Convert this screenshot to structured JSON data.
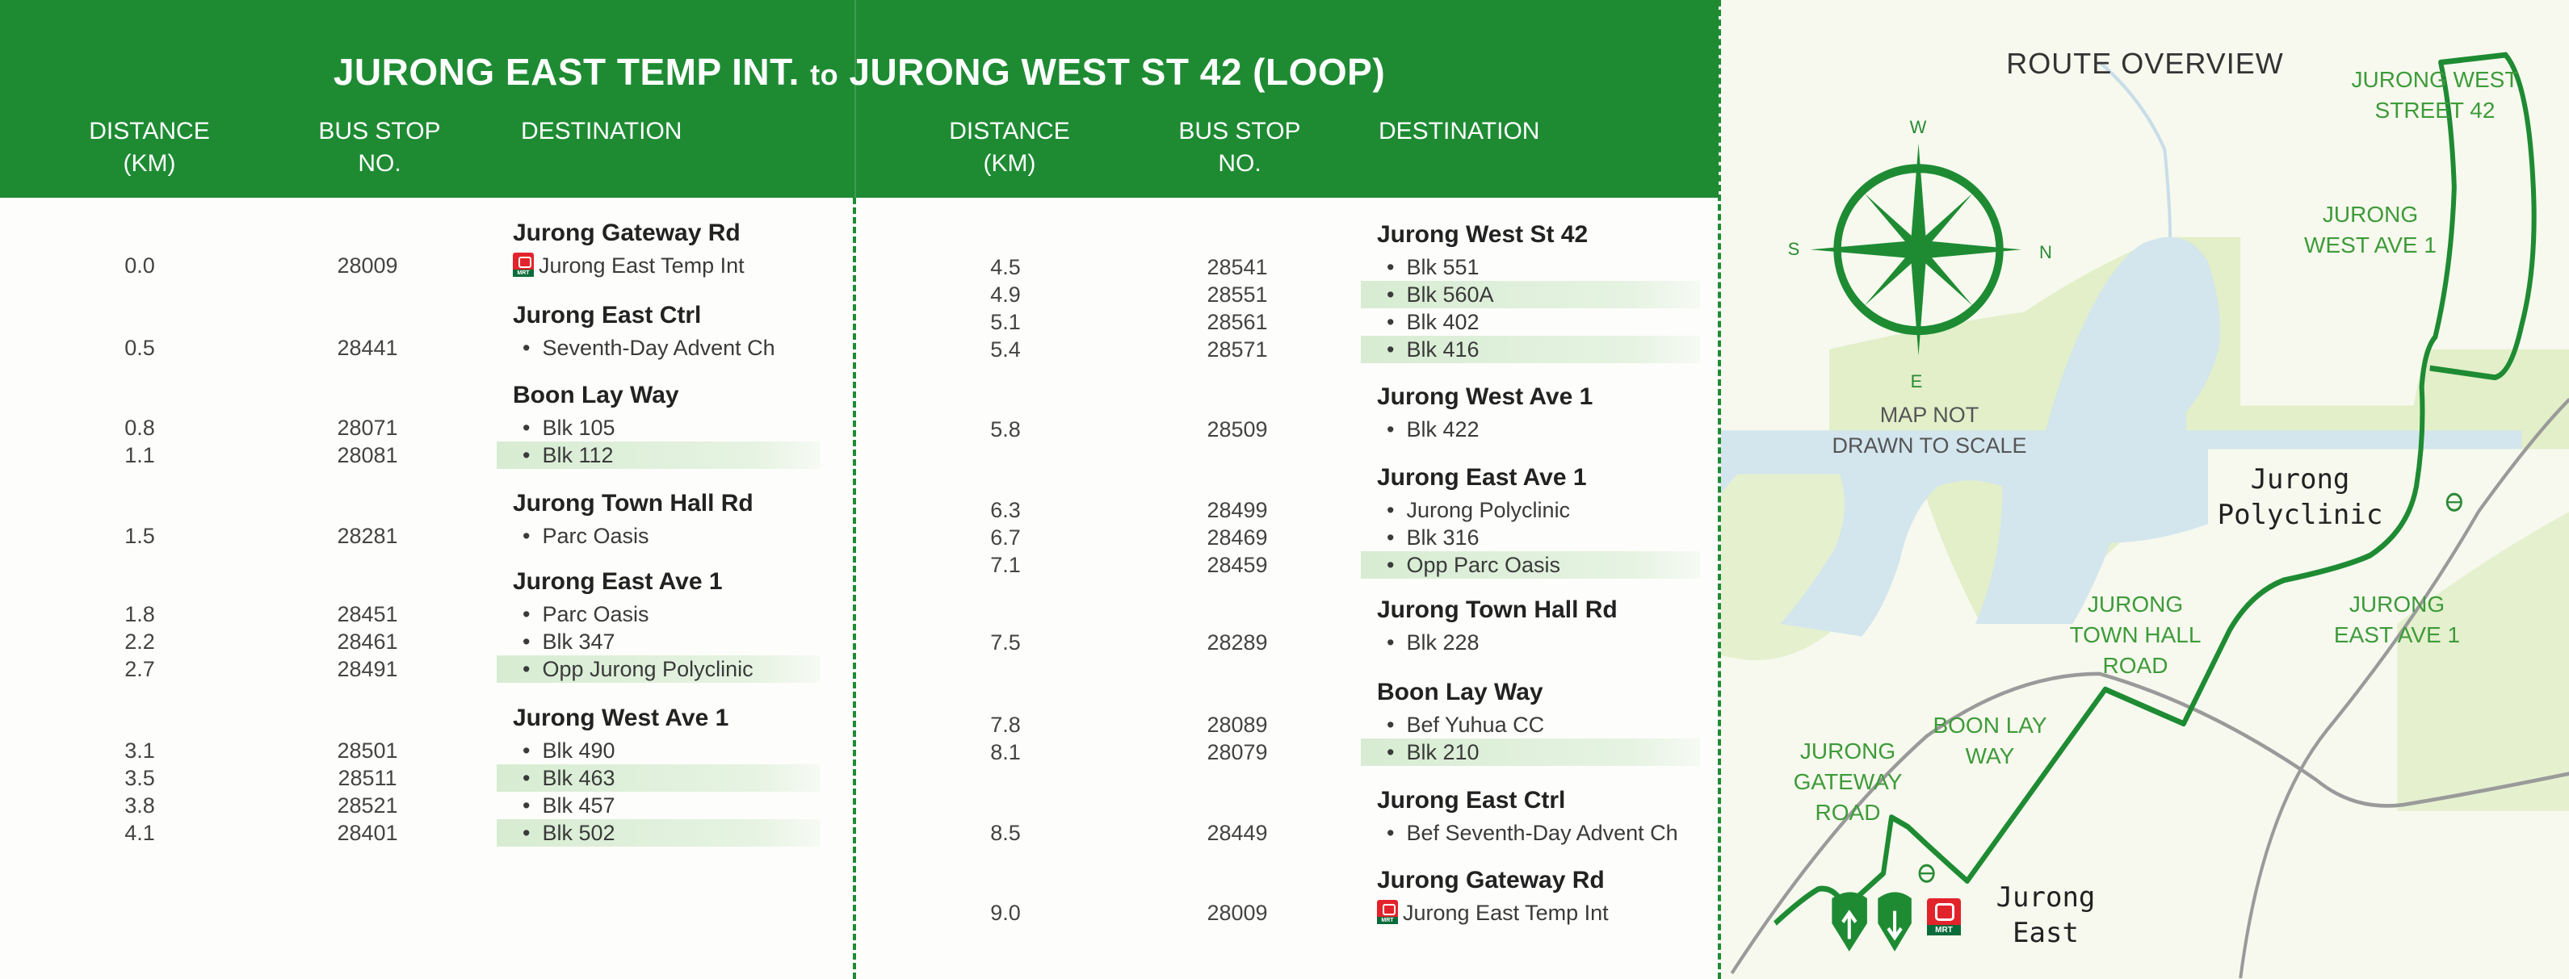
{
  "header": {
    "title_part1": "JURONG EAST TEMP INT.",
    "title_to": "to",
    "title_part2": "JURONG WEST ST 42 (LOOP)",
    "distance_label": "DISTANCE",
    "distance_unit": "(KM)",
    "stop_label": "BUS STOP",
    "stop_unit": "NO.",
    "destination_label": "DESTINATION"
  },
  "colors": {
    "brand_green": "#1e8b33",
    "shade": "#d7ecd2",
    "mrt_red": "#e3232b"
  },
  "left_groups": [
    {
      "road": "Jurong Gateway Rd",
      "stops": [
        {
          "km": "0.0",
          "stop": "28009",
          "name": "Jurong East Temp Int",
          "mrt": true
        }
      ]
    },
    {
      "road": "Jurong East Ctrl",
      "stops": [
        {
          "km": "0.5",
          "stop": "28441",
          "name": "Seventh-Day Advent Ch"
        }
      ]
    },
    {
      "road": "Boon Lay Way",
      "stops": [
        {
          "km": "0.8",
          "stop": "28071",
          "name": "Blk 105"
        },
        {
          "km": "1.1",
          "stop": "28081",
          "name": "Blk 112",
          "shaded": true
        }
      ]
    },
    {
      "road": "Jurong Town Hall Rd",
      "stops": [
        {
          "km": "1.5",
          "stop": "28281",
          "name": "Parc Oasis"
        }
      ]
    },
    {
      "road": "Jurong East Ave 1",
      "stops": [
        {
          "km": "1.8",
          "stop": "28451",
          "name": "Parc Oasis"
        },
        {
          "km": "2.2",
          "stop": "28461",
          "name": "Blk 347"
        },
        {
          "km": "2.7",
          "stop": "28491",
          "name": "Opp Jurong Polyclinic",
          "shaded": true
        }
      ]
    },
    {
      "road": "Jurong West Ave 1",
      "stops": [
        {
          "km": "3.1",
          "stop": "28501",
          "name": "Blk 490"
        },
        {
          "km": "3.5",
          "stop": "28511",
          "name": "Blk 463",
          "shaded": true
        },
        {
          "km": "3.8",
          "stop": "28521",
          "name": "Blk 457"
        },
        {
          "km": "4.1",
          "stop": "28401",
          "name": "Blk 502",
          "shaded": true
        }
      ]
    }
  ],
  "right_groups": [
    {
      "road": "Jurong West St 42",
      "stops": [
        {
          "km": "4.5",
          "stop": "28541",
          "name": "Blk 551"
        },
        {
          "km": "4.9",
          "stop": "28551",
          "name": "Blk 560A",
          "shaded": true
        },
        {
          "km": "5.1",
          "stop": "28561",
          "name": "Blk 402"
        },
        {
          "km": "5.4",
          "stop": "28571",
          "name": "Blk 416",
          "shaded": true
        }
      ]
    },
    {
      "road": "Jurong West Ave 1",
      "stops": [
        {
          "km": "5.8",
          "stop": "28509",
          "name": "Blk 422"
        }
      ]
    },
    {
      "road": "Jurong East Ave 1",
      "stops": [
        {
          "km": "6.3",
          "stop": "28499",
          "name": "Jurong Polyclinic"
        },
        {
          "km": "6.7",
          "stop": "28469",
          "name": "Blk 316"
        },
        {
          "km": "7.1",
          "stop": "28459",
          "name": "Opp Parc Oasis",
          "shaded": true
        }
      ]
    },
    {
      "road": "Jurong Town Hall Rd",
      "stops": [
        {
          "km": "7.5",
          "stop": "28289",
          "name": "Blk 228"
        }
      ]
    },
    {
      "road": "Boon Lay Way",
      "stops": [
        {
          "km": "7.8",
          "stop": "28089",
          "name": "Bef Yuhua CC"
        },
        {
          "km": "8.1",
          "stop": "28079",
          "name": "Blk 210",
          "shaded": true
        }
      ]
    },
    {
      "road": "Jurong East Ctrl",
      "stops": [
        {
          "km": "8.5",
          "stop": "28449",
          "name": "Bef Seventh-Day Advent Ch"
        }
      ]
    },
    {
      "road": "Jurong Gateway Rd",
      "stops": [
        {
          "km": "9.0",
          "stop": "28009",
          "name": "Jurong East Temp Int",
          "mrt": true
        }
      ]
    }
  ],
  "map": {
    "title": "ROUTE OVERVIEW",
    "compass": {
      "top": "W",
      "left": "S",
      "right": "N",
      "bottom": "E"
    },
    "scale_note_1": "MAP NOT",
    "scale_note_2": "DRAWN TO SCALE",
    "labels": {
      "jw_st42_1": "JURONG WEST",
      "jw_st42_2": "STREET 42",
      "jw_ave1_1": "JURONG",
      "jw_ave1_2": "WEST AVE 1",
      "je_ave1_1": "JURONG",
      "je_ave1_2": "EAST AVE 1",
      "jth_1": "JURONG",
      "jth_2": "TOWN HALL",
      "jth_3": "ROAD",
      "blw_1": "BOON LAY",
      "blw_2": "WAY",
      "jg_1": "JURONG",
      "jg_2": "GATEWAY",
      "jg_3": "ROAD"
    },
    "landmark_polyclinic_1": "Jurong",
    "landmark_polyclinic_2": "Polyclinic",
    "landmark_east_1": "Jurong",
    "landmark_east_2": "East",
    "mrt_label": "MRT"
  }
}
